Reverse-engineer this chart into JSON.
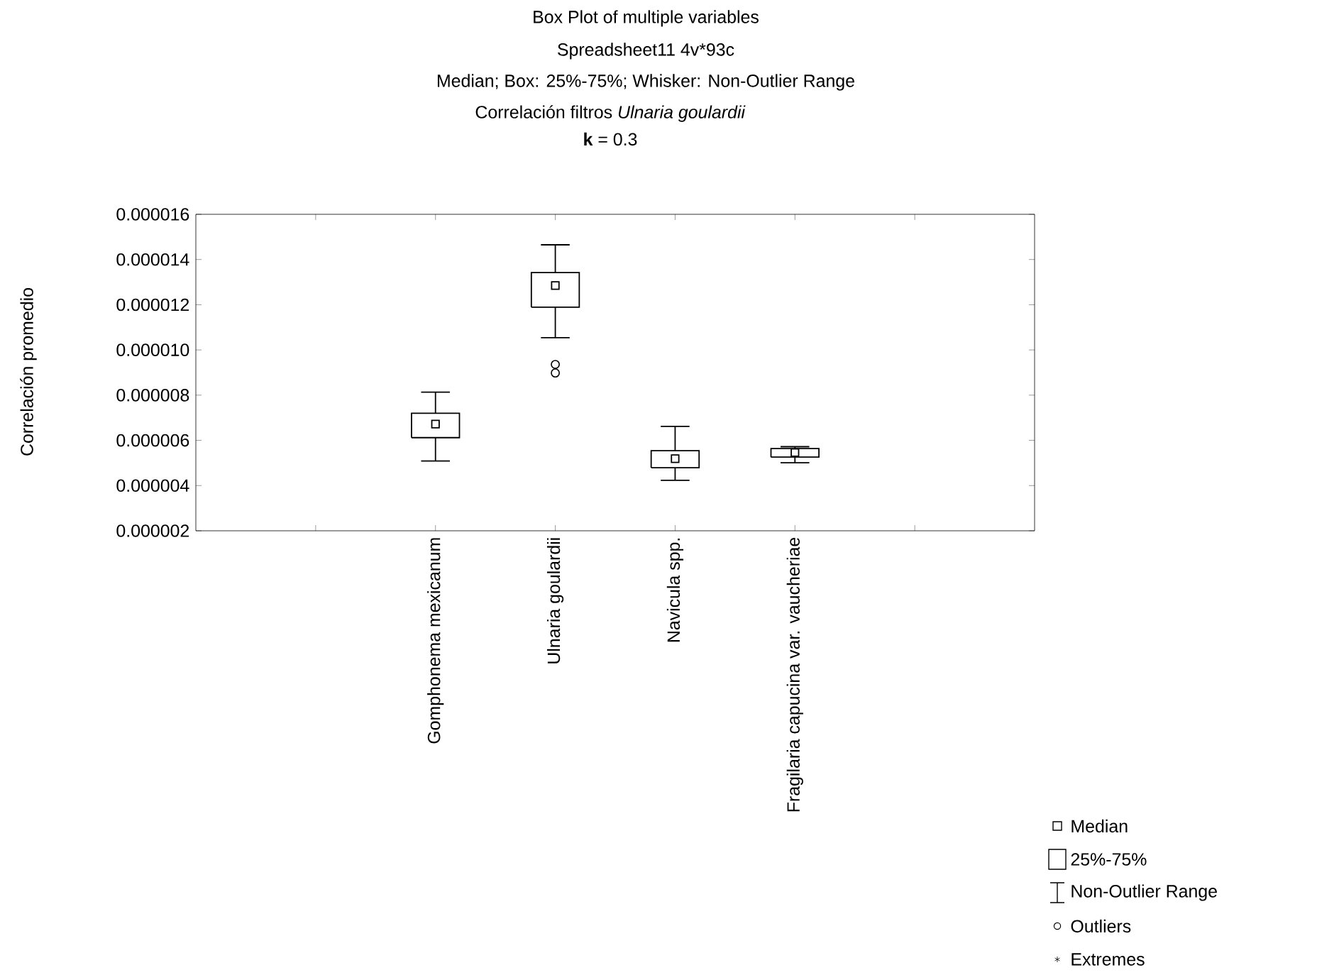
{
  "chart_data": {
    "type": "box",
    "title": "Box Plot of multiple variables",
    "subtitle": "Spreadsheet11 4v*93c",
    "ylabel": "Correlación promedio",
    "annotations": [
      "Median; Box: 25%-75%; Whisker: Non-Outlier Range",
      "Correlación filtros *Ulnaria goulardii*",
      "**k** = 0.3",
      "Median",
      "25%-75%",
      "Non-Outlier Range",
      "Outliers",
      "Extremes"
    ],
    "categories": [
      null,
      "Gomphonema mexicanum",
      "Ulnaria goulardii",
      "Navicula spp.",
      "Fragilaria capucina var. vaucheriae",
      null
    ],
    "boxes": [
      null,
      {
        "low": 5.09e-06,
        "q1": 6.12e-06,
        "median": 6.72e-06,
        "q3": 7.2e-06,
        "high": 8.13e-06
      },
      {
        "low": 1.054e-05,
        "q1": 1.189e-05,
        "median": 1.285e-05,
        "q3": 1.342e-05,
        "high": 1.465e-05,
        "outliers": [
          9.36e-06,
          8.98e-06
        ]
      },
      {
        "low": 4.23e-06,
        "q1": 4.79e-06,
        "median": 5.19e-06,
        "q3": 5.54e-06,
        "high": 6.62e-06
      },
      {
        "low": 5.01e-06,
        "q1": 5.26e-06,
        "median": 5.46e-06,
        "q3": 5.64e-06,
        "high": 5.72e-06
      },
      null
    ],
    "ylim": [
      2e-06,
      1.6e-05
    ],
    "yticks": [
      {
        "value": 2e-06,
        "label": "0.000002"
      },
      {
        "value": 4e-06,
        "label": "0.000004"
      },
      {
        "value": 6e-06,
        "label": "0.000006"
      },
      {
        "value": 8e-06,
        "label": "0.000008"
      },
      {
        "value": 1e-05,
        "label": "0.000010"
      },
      {
        "value": 1.2e-05,
        "label": "0.000012"
      },
      {
        "value": 1.4e-05,
        "label": "0.000014"
      },
      {
        "value": 1.6e-05,
        "label": "0.000016"
      }
    ],
    "grid": false
  }
}
